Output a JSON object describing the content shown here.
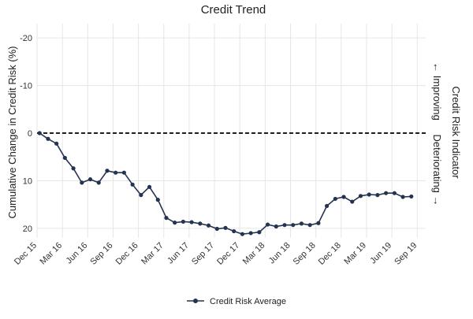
{
  "chart_data": {
    "type": "line",
    "title": "Credit Trend",
    "ylabel": "Cumulative Change in Credit Risk (%)",
    "right_label": "Credit Risk Indicator",
    "right_sublabel_top": "← Improving",
    "right_sublabel_bottom": "Deteriorating →",
    "y_inverted": true,
    "ylim": [
      -23,
      22
    ],
    "yticks": [
      -20,
      -10,
      0,
      10,
      20
    ],
    "xlim": [
      0,
      46
    ],
    "xticks": [
      {
        "x": 0,
        "label": "Dec 15"
      },
      {
        "x": 3,
        "label": "Mar 16"
      },
      {
        "x": 6,
        "label": "Jun 16"
      },
      {
        "x": 9,
        "label": "Sep 16"
      },
      {
        "x": 12,
        "label": "Dec 16"
      },
      {
        "x": 15,
        "label": "Mar 17"
      },
      {
        "x": 18,
        "label": "Jun 17"
      },
      {
        "x": 21,
        "label": "Sep 17"
      },
      {
        "x": 24,
        "label": "Dec 17"
      },
      {
        "x": 27,
        "label": "Mar 18"
      },
      {
        "x": 30,
        "label": "Jun 18"
      },
      {
        "x": 33,
        "label": "Sep 18"
      },
      {
        "x": 36,
        "label": "Dec 18"
      },
      {
        "x": 39,
        "label": "Mar 19"
      },
      {
        "x": 42,
        "label": "Jun 19"
      },
      {
        "x": 45,
        "label": "Sep 19"
      }
    ],
    "grid": true,
    "reference_line": 0,
    "legend_position": "bottom",
    "series": [
      {
        "name": "Credit Risk Average",
        "color": "#243450",
        "values": [
          0,
          1.2,
          2.2,
          5.2,
          7.4,
          10.4,
          9.7,
          10.4,
          7.9,
          8.3,
          8.3,
          10.8,
          13.0,
          11.3,
          14.0,
          17.8,
          18.8,
          18.6,
          18.7,
          19.0,
          19.4,
          20.1,
          19.9,
          20.6,
          21.2,
          21.0,
          20.8,
          19.2,
          19.6,
          19.3,
          19.3,
          19.0,
          19.3,
          18.9,
          15.3,
          13.8,
          13.4,
          14.4,
          13.2,
          12.9,
          13.0,
          12.6,
          12.6,
          13.4,
          13.3
        ]
      }
    ]
  }
}
